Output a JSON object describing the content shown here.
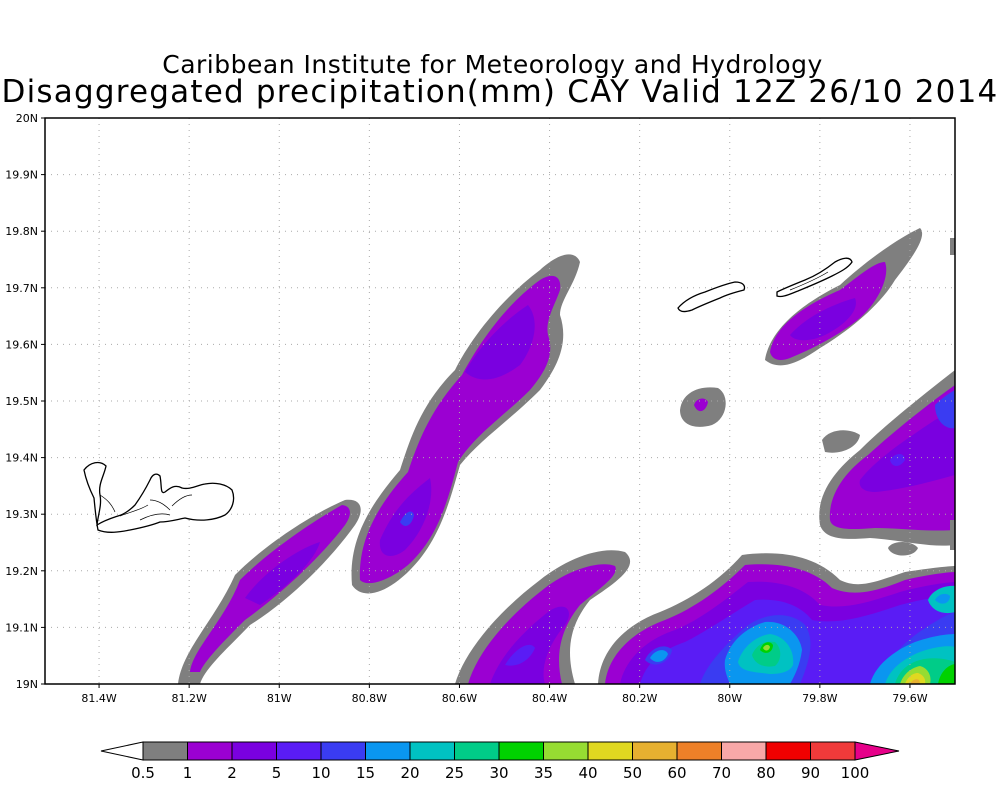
{
  "title": {
    "line1": "Caribbean Institute for Meteorology and Hydrology",
    "line2": "Disaggregated precipitation(mm) CAY Valid 12Z 26/10 2014"
  },
  "axes": {
    "lat_labels": [
      "20N",
      "19.9N",
      "19.8N",
      "19.7N",
      "19.6N",
      "19.5N",
      "19.4N",
      "19.3N",
      "19.2N",
      "19.1N",
      "19N"
    ],
    "lon_labels": [
      "81.4W",
      "81.2W",
      "81W",
      "80.8W",
      "80.6W",
      "80.4W",
      "80.2W",
      "80W",
      "79.8W",
      "79.6W"
    ]
  },
  "colorbar": {
    "labels": [
      "0.5",
      "1",
      "2",
      "5",
      "10",
      "15",
      "20",
      "25",
      "30",
      "35",
      "40",
      "50",
      "60",
      "70",
      "80",
      "90",
      "100"
    ],
    "colors": [
      "#ffffff",
      "#7f7f7f",
      "#9b00d2",
      "#7a00e0",
      "#5a1cf5",
      "#3a3cf2",
      "#0a96f0",
      "#00c2c2",
      "#00cc88",
      "#00d200",
      "#96dc32",
      "#e0d820",
      "#e6b030",
      "#ee8028",
      "#f8a8a8",
      "#f00000",
      "#f03a3a",
      "#e60089"
    ]
  },
  "chart_data": {
    "type": "heatmap",
    "title": "Disaggregated precipitation(mm) CAY Valid 12Z 26/10 2014",
    "xlabel": "",
    "ylabel": "",
    "xlim": [
      -81.52,
      -79.5
    ],
    "ylim": [
      19.0,
      20.0
    ],
    "x_ticks": [
      "81.4W",
      "81.2W",
      "81W",
      "80.8W",
      "80.6W",
      "80.4W",
      "80.2W",
      "80W",
      "79.8W",
      "79.6W"
    ],
    "y_ticks": [
      "19N",
      "19.1N",
      "19.2N",
      "19.3N",
      "19.4N",
      "19.5N",
      "19.6N",
      "19.7N",
      "19.8N",
      "19.9N",
      "20N"
    ],
    "levels": [
      0.5,
      1,
      2,
      5,
      10,
      15,
      20,
      25,
      30,
      35,
      40,
      50,
      60,
      70,
      80,
      90,
      100
    ],
    "grid": true,
    "legend": "bottom"
  }
}
